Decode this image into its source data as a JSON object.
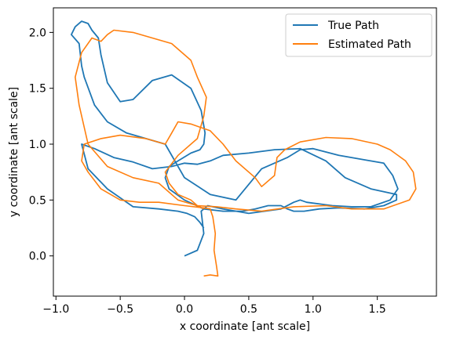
{
  "chart_data": {
    "type": "line",
    "title": "",
    "xlabel": "x coordinate [ant scale]",
    "ylabel": "y coordinate [ant scale]",
    "xlim": [
      -1.02,
      1.96
    ],
    "ylim": [
      -0.36,
      2.22
    ],
    "xticks": [
      "−1.0",
      "−0.5",
      "0.0",
      "0.5",
      "1.0",
      "1.5"
    ],
    "xtick_values": [
      -1.0,
      -0.5,
      0.0,
      0.5,
      1.0,
      1.5
    ],
    "yticks": [
      "0.0",
      "0.5",
      "1.0",
      "1.5",
      "2.0"
    ],
    "ytick_values": [
      0.0,
      0.5,
      1.0,
      1.5,
      2.0
    ],
    "grid": false,
    "legend_position": "top-right",
    "series": [
      {
        "name": "True Path",
        "color": "#1f77b4",
        "x": [
          0.0,
          0.1,
          0.15,
          0.13,
          0.18,
          0.3,
          0.5,
          0.75,
          0.85,
          0.9,
          0.95,
          1.15,
          1.3,
          1.45,
          1.6,
          1.66,
          1.62,
          1.55,
          1.4,
          1.2,
          1.0,
          0.9,
          0.8,
          0.6,
          0.4,
          0.2,
          0.0,
          -0.15,
          -0.3,
          -0.45,
          -0.6,
          -0.7,
          -0.78,
          -0.8,
          -0.82,
          -0.88,
          -0.85,
          -0.8,
          -0.75,
          -0.72,
          -0.67,
          -0.65,
          -0.6,
          -0.5,
          -0.4,
          -0.25,
          -0.1,
          0.05,
          0.13,
          0.16,
          0.15,
          0.12,
          0.05,
          -0.05,
          -0.12,
          -0.15,
          -0.12,
          0.0,
          0.15,
          0.3,
          0.45,
          0.55,
          0.65,
          0.75,
          0.8,
          0.85,
          0.93,
          1.05,
          1.2,
          1.4,
          1.55,
          1.65,
          1.65,
          1.45,
          1.25,
          1.1,
          0.9,
          0.7,
          0.5,
          0.3,
          0.2,
          0.1,
          0.0,
          -0.1,
          -0.25,
          -0.4,
          -0.55,
          -0.7,
          -0.8,
          -0.75,
          -0.6,
          -0.4,
          -0.2,
          -0.05,
          0.02,
          0.08,
          0.12,
          0.15
        ],
        "y": [
          0.0,
          0.05,
          0.2,
          0.4,
          0.45,
          0.42,
          0.38,
          0.42,
          0.48,
          0.5,
          0.48,
          0.45,
          0.44,
          0.44,
          0.5,
          0.6,
          0.72,
          0.83,
          0.86,
          0.9,
          0.96,
          0.95,
          0.88,
          0.78,
          0.5,
          0.55,
          0.7,
          1.0,
          1.05,
          1.1,
          1.2,
          1.35,
          1.6,
          1.7,
          1.9,
          1.98,
          2.05,
          2.1,
          2.08,
          2.02,
          1.95,
          1.8,
          1.55,
          1.38,
          1.4,
          1.57,
          1.62,
          1.5,
          1.3,
          1.1,
          1.0,
          0.95,
          0.92,
          0.85,
          0.8,
          0.7,
          0.6,
          0.5,
          0.42,
          0.4,
          0.4,
          0.42,
          0.45,
          0.45,
          0.42,
          0.4,
          0.4,
          0.42,
          0.43,
          0.42,
          0.45,
          0.5,
          0.55,
          0.6,
          0.7,
          0.85,
          0.96,
          0.95,
          0.92,
          0.9,
          0.85,
          0.82,
          0.83,
          0.8,
          0.78,
          0.84,
          0.88,
          0.96,
          1.0,
          0.78,
          0.6,
          0.44,
          0.42,
          0.4,
          0.38,
          0.35,
          0.3,
          0.25
        ],
        "x_order_note": ""
      },
      {
        "name": "Estimated Path",
        "color": "#ff7f0e",
        "x": [
          0.15,
          0.2,
          0.26,
          0.25,
          0.23,
          0.24,
          0.22,
          0.2,
          0.15,
          0.0,
          -0.2,
          -0.35,
          -0.5,
          -0.65,
          -0.75,
          -0.8,
          -0.78,
          -0.65,
          -0.5,
          -0.3,
          -0.15,
          -0.1,
          -0.05,
          0.05,
          0.2,
          0.3,
          0.4,
          0.55,
          0.6,
          0.7,
          0.72,
          0.78,
          0.9,
          1.1,
          1.3,
          1.5,
          1.6,
          1.72,
          1.78,
          1.8,
          1.75,
          1.55,
          1.3,
          1.1,
          0.85,
          0.6,
          0.4,
          0.25,
          0.1,
          -0.05,
          -0.2,
          -0.4,
          -0.6,
          -0.75,
          -0.82,
          -0.85,
          -0.8,
          -0.72,
          -0.65,
          -0.6,
          -0.55,
          -0.4,
          -0.25,
          -0.1,
          0.05,
          0.1,
          0.17,
          0.15,
          0.1,
          -0.05,
          -0.15,
          -0.12,
          -0.05,
          0.05,
          0.1,
          0.15
        ],
        "y": [
          -0.18,
          -0.17,
          -0.18,
          -0.1,
          0.05,
          0.2,
          0.35,
          0.42,
          0.43,
          0.45,
          0.48,
          0.48,
          0.5,
          0.6,
          0.75,
          0.85,
          1.0,
          1.05,
          1.08,
          1.05,
          1.0,
          1.1,
          1.2,
          1.18,
          1.12,
          1.0,
          0.85,
          0.7,
          0.62,
          0.72,
          0.88,
          0.95,
          1.02,
          1.06,
          1.05,
          1.0,
          0.95,
          0.85,
          0.75,
          0.6,
          0.5,
          0.42,
          0.42,
          0.45,
          0.44,
          0.4,
          0.42,
          0.44,
          0.45,
          0.5,
          0.65,
          0.7,
          0.8,
          1.0,
          1.35,
          1.6,
          1.82,
          1.95,
          1.92,
          1.98,
          2.02,
          2.0,
          1.95,
          1.9,
          1.75,
          1.6,
          1.42,
          1.25,
          1.05,
          0.9,
          0.75,
          0.65,
          0.55,
          0.5,
          0.45,
          0.42
        ]
      }
    ]
  }
}
